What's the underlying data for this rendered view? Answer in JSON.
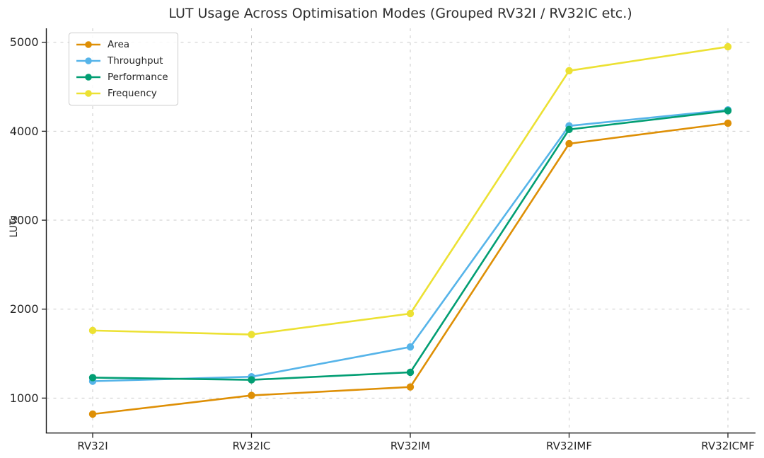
{
  "chart_data": {
    "type": "line",
    "title": "LUT Usage Across Optimisation Modes (Grouped RV32I / RV32IC etc.)",
    "xlabel": "",
    "ylabel": "LUTs",
    "categories": [
      "RV32I",
      "RV32IC",
      "RV32IM",
      "RV32IMF",
      "RV32ICMF"
    ],
    "series": [
      {
        "name": "Area",
        "color": "#DE8F05",
        "values": [
          820,
          1030,
          1125,
          3860,
          4090
        ]
      },
      {
        "name": "Throughput",
        "color": "#56B4E9",
        "values": [
          1190,
          1240,
          1575,
          4060,
          4240
        ]
      },
      {
        "name": "Performance",
        "color": "#029E73",
        "values": [
          1230,
          1205,
          1290,
          4020,
          4230
        ]
      },
      {
        "name": "Frequency",
        "color": "#ECE133",
        "values": [
          1760,
          1715,
          1950,
          4680,
          4950
        ]
      }
    ],
    "yticks": [
      1000,
      2000,
      3000,
      4000,
      5000
    ],
    "ylim": [
      613,
      5157
    ],
    "grid": true,
    "grid_style": "dashed",
    "legend_position": "upper left"
  }
}
